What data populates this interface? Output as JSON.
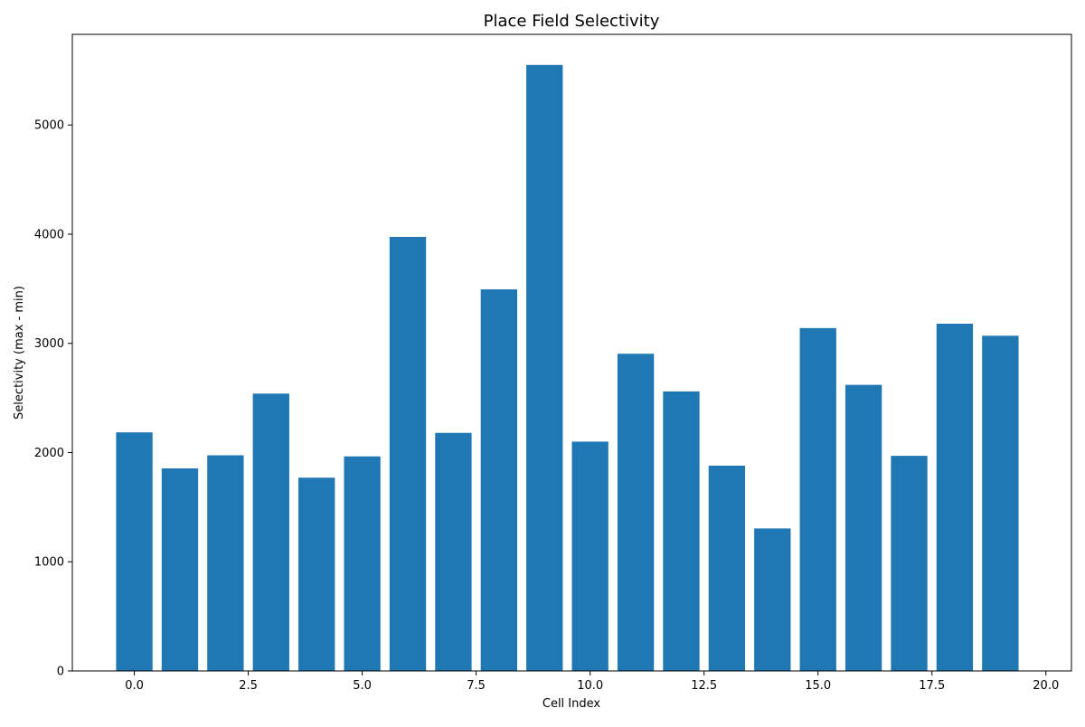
{
  "chart_data": {
    "type": "bar",
    "title": "Place Field Selectivity",
    "xlabel": "Cell Index",
    "ylabel": "Selectivity (max - min)",
    "x": [
      0,
      1,
      2,
      3,
      4,
      5,
      6,
      7,
      8,
      9,
      10,
      11,
      12,
      13,
      14,
      15,
      16,
      17,
      18,
      19
    ],
    "values": [
      2185,
      1855,
      1975,
      2540,
      1770,
      1965,
      3975,
      2180,
      3495,
      5550,
      2100,
      2905,
      2560,
      1880,
      1305,
      3140,
      2620,
      1970,
      3180,
      3070
    ],
    "bar_width": 0.8,
    "bar_color": "#1f77b4",
    "xlim": [
      -1.36,
      20.56
    ],
    "ylim": [
      0,
      5830
    ],
    "xticks": [
      0.0,
      2.5,
      5.0,
      7.5,
      10.0,
      12.5,
      15.0,
      17.5,
      20.0
    ],
    "xtick_labels": [
      "0.0",
      "2.5",
      "5.0",
      "7.5",
      "10.0",
      "12.5",
      "15.0",
      "17.5",
      "20.0"
    ],
    "yticks": [
      0,
      1000,
      2000,
      3000,
      4000,
      5000
    ],
    "ytick_labels": [
      "0",
      "1000",
      "2000",
      "3000",
      "4000",
      "5000"
    ],
    "grid": false,
    "legend": "none"
  }
}
